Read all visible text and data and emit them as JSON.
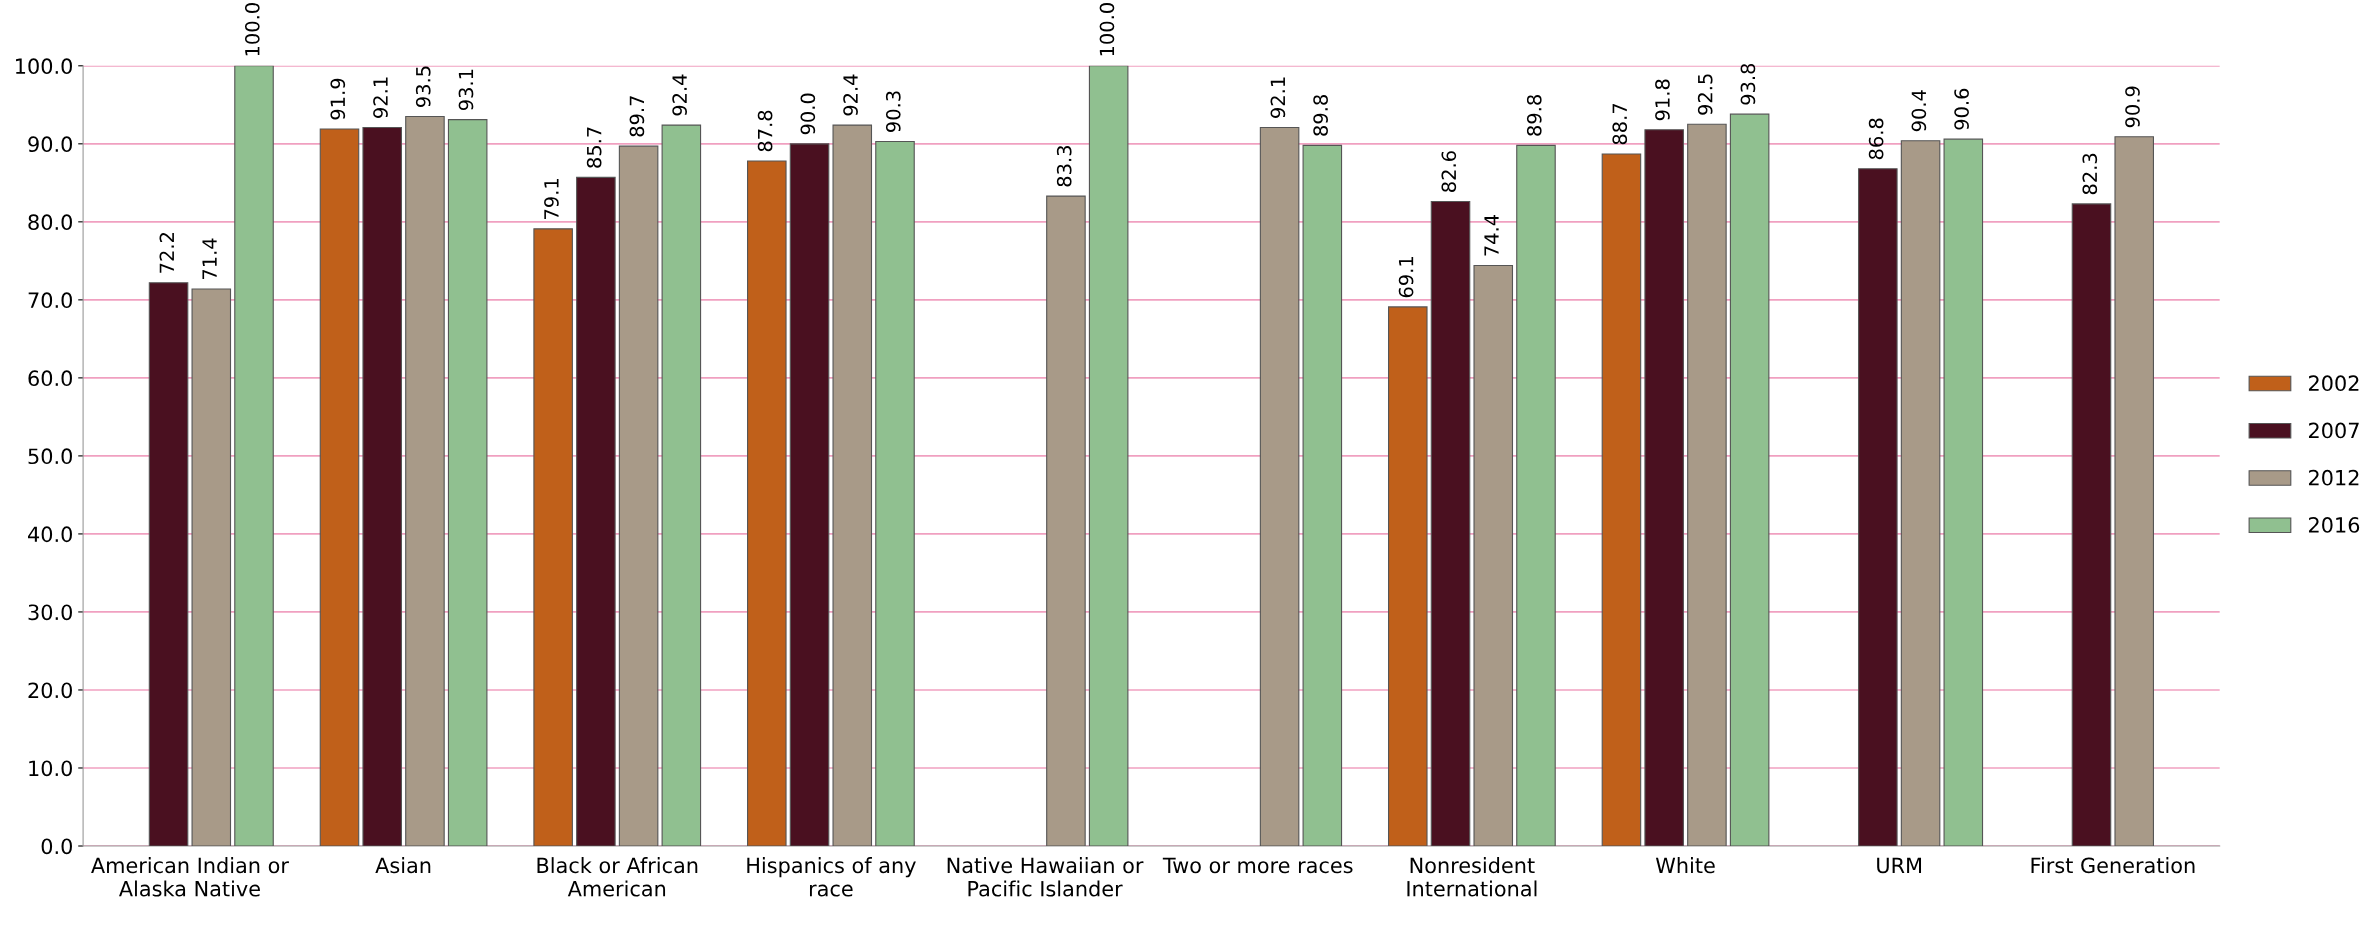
{
  "chart_data": {
    "type": "bar",
    "categories": [
      "American Indian or\nAlaska Native",
      "Asian",
      "Black or African\nAmerican",
      "Hispanics of any\nrace",
      "Native Hawaiian or\nPacific Islander",
      "Two or more races",
      "Nonresident\nInternational",
      "White",
      "URM",
      "First Generation"
    ],
    "series": [
      {
        "name": "2002",
        "color": "#c0601a",
        "values": [
          null,
          91.9,
          79.1,
          87.8,
          null,
          null,
          69.1,
          88.7,
          null,
          null
        ],
        "value_labels": [
          null,
          "91.9",
          "79.1",
          "87.8",
          null,
          null,
          "69.1",
          "88.7",
          null,
          null
        ]
      },
      {
        "name": "2007",
        "color": "#4a1020",
        "values": [
          72.2,
          92.1,
          85.7,
          90.0,
          null,
          null,
          82.6,
          91.8,
          86.8,
          82.3
        ],
        "value_labels": [
          "72.2",
          "92.1",
          "85.7",
          "90.0",
          null,
          null,
          "82.6",
          "91.8",
          "86.8",
          "82.3"
        ]
      },
      {
        "name": "2012",
        "color": "#a89a88",
        "values": [
          71.4,
          93.5,
          89.7,
          92.4,
          83.3,
          92.1,
          74.4,
          92.5,
          90.4,
          90.9
        ],
        "value_labels": [
          "71.4",
          "93.5",
          "89.7",
          "92.4",
          "83.3",
          "92.1",
          "74.4",
          "92.5",
          "90.4",
          "90.9"
        ]
      },
      {
        "name": "2016",
        "color": "#90c090",
        "values": [
          100.0,
          93.1,
          92.4,
          90.3,
          100.0,
          89.8,
          89.8,
          93.8,
          90.6,
          null
        ],
        "value_labels": [
          "100.0",
          "93.1",
          "92.4",
          "90.3",
          "100.0",
          "89.8",
          "89.8",
          "93.8",
          "90.6",
          null
        ]
      }
    ],
    "ylim": [
      0,
      100
    ],
    "yticks": [
      {
        "value": 0,
        "label": "0.0"
      },
      {
        "value": 10,
        "label": "10.0"
      },
      {
        "value": 20,
        "label": "20.0"
      },
      {
        "value": 30,
        "label": "30.0"
      },
      {
        "value": 40,
        "label": "40.0"
      },
      {
        "value": 50,
        "label": "50.0"
      },
      {
        "value": 60,
        "label": "60.0"
      },
      {
        "value": 70,
        "label": "70.0"
      },
      {
        "value": 80,
        "label": "80.0"
      },
      {
        "value": 90,
        "label": "90.0"
      },
      {
        "value": 100,
        "label": "100.0"
      }
    ],
    "grid": "y",
    "legend": "right"
  }
}
